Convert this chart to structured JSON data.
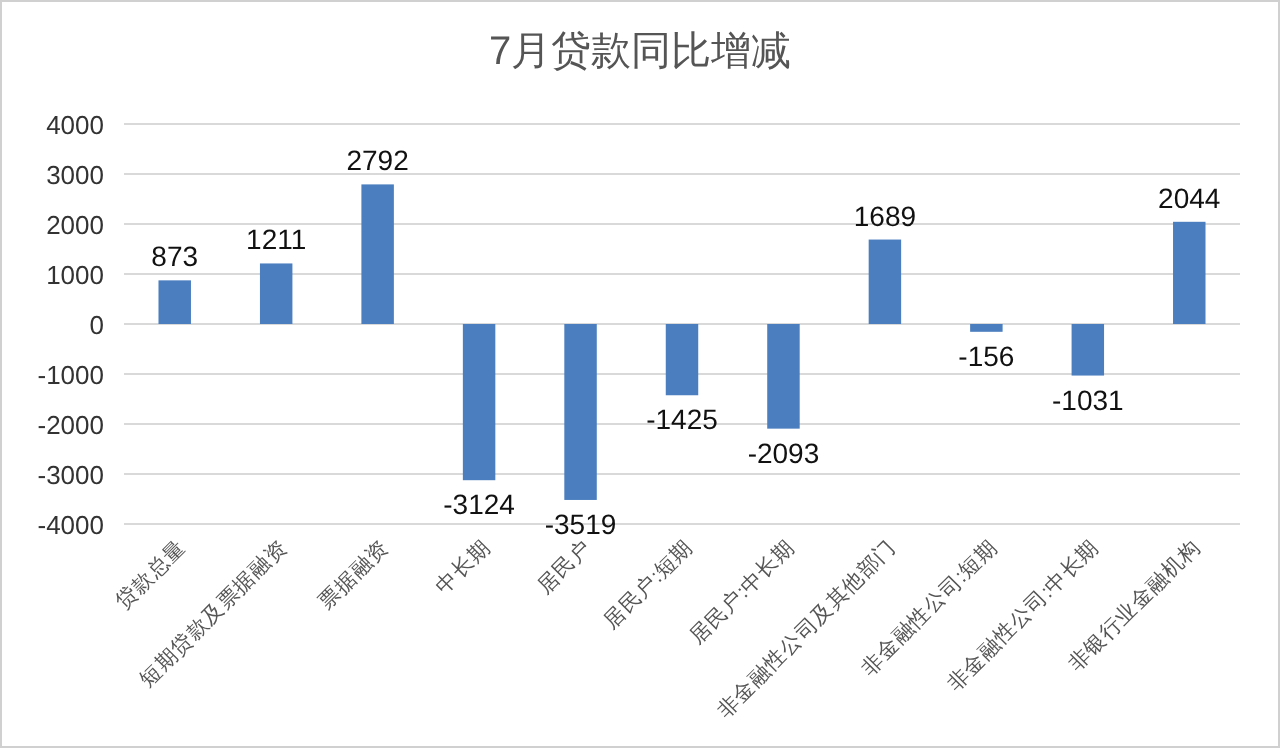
{
  "chart_data": {
    "type": "bar",
    "title": "7月贷款同比增减",
    "categories": [
      "贷款总量",
      "短期贷款及票据融资",
      "票据融资",
      "中长期",
      "居民户",
      "居民户:短期",
      "居民户:中长期",
      "非金融性公司及其他部门",
      "非金融性公司:短期",
      "非金融性公司:中长期",
      "非银行业金融机构"
    ],
    "values": [
      873,
      1211,
      2792,
      -3124,
      -3519,
      -1425,
      -2093,
      1689,
      -156,
      -1031,
      2044
    ],
    "color": "#4a7ebf",
    "ylim": [
      -4000,
      4000
    ],
    "yticks": [
      -4000,
      -3000,
      -2000,
      -1000,
      0,
      1000,
      2000,
      3000,
      4000
    ],
    "grid": "y",
    "data_labels": true
  }
}
